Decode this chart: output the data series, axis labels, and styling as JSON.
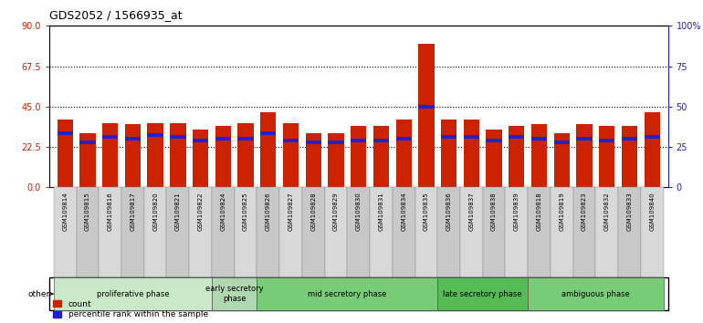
{
  "title": "GDS2052 / 1566935_at",
  "samples": [
    "GSM109814",
    "GSM109815",
    "GSM109816",
    "GSM109817",
    "GSM109820",
    "GSM109821",
    "GSM109822",
    "GSM109824",
    "GSM109825",
    "GSM109826",
    "GSM109827",
    "GSM109828",
    "GSM109829",
    "GSM109830",
    "GSM109831",
    "GSM109834",
    "GSM109835",
    "GSM109836",
    "GSM109837",
    "GSM109838",
    "GSM109839",
    "GSM109818",
    "GSM109819",
    "GSM109823",
    "GSM109832",
    "GSM109833",
    "GSM109840"
  ],
  "count_values": [
    38,
    30,
    36,
    35,
    36,
    36,
    32,
    34,
    36,
    42,
    36,
    30,
    30,
    34,
    34,
    38,
    80,
    38,
    38,
    32,
    34,
    35,
    30,
    35,
    34,
    34,
    42
  ],
  "blue_bar_bottom": [
    29,
    24,
    27,
    26,
    28,
    27,
    25,
    26,
    26,
    29,
    25,
    24,
    24,
    25,
    25,
    26,
    44,
    27,
    27,
    25,
    27,
    26,
    24,
    26,
    25,
    26,
    27
  ],
  "blue_bar_height": [
    2,
    2,
    2,
    2,
    2,
    2,
    2,
    2,
    2,
    2,
    2,
    2,
    2,
    2,
    2,
    2,
    2,
    2,
    2,
    2,
    2,
    2,
    2,
    2,
    2,
    2,
    2
  ],
  "phases": [
    {
      "label": "proliferative phase",
      "start": 0,
      "end": 7,
      "color": "#c8e8c8"
    },
    {
      "label": "early secretory\nphase",
      "start": 7,
      "end": 9,
      "color": "#b0d8b0"
    },
    {
      "label": "mid secretory phase",
      "start": 9,
      "end": 17,
      "color": "#78cc78"
    },
    {
      "label": "late secretory phase",
      "start": 17,
      "end": 21,
      "color": "#55bb55"
    },
    {
      "label": "ambiguous phase",
      "start": 21,
      "end": 27,
      "color": "#78cc78"
    }
  ],
  "left_ylim": [
    0,
    90
  ],
  "right_ylim": [
    0,
    100
  ],
  "left_yticks": [
    0,
    22.5,
    45,
    67.5,
    90
  ],
  "right_yticks": [
    0,
    25,
    50,
    75,
    100
  ],
  "right_yticklabels": [
    "0",
    "25",
    "50",
    "75",
    "100%"
  ],
  "bar_color": "#cc2200",
  "blue_color": "#2222cc",
  "tick_color_left": "#cc2200",
  "tick_color_right": "#2222cc",
  "dotted_line_values": [
    22.5,
    45,
    67.5
  ],
  "background_color": "#ffffff",
  "bar_width": 0.7,
  "figsize": [
    7.7,
    3.54
  ],
  "dpi": 100
}
